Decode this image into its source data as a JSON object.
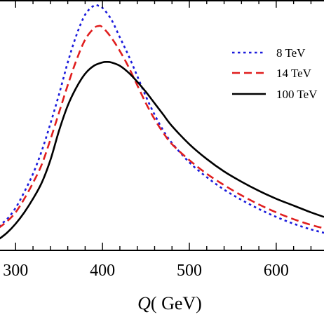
{
  "chart_data": {
    "type": "line",
    "xlabel_var": "Q",
    "xlabel_unit": "( GeV)",
    "xticks": [
      300,
      400,
      500,
      600
    ],
    "xlim": [
      282,
      655
    ],
    "ylim": [
      0,
      1
    ],
    "grid": false,
    "legend_position": "right",
    "series": [
      {
        "name": "8 TeV",
        "color": "#1a1adc",
        "dash": "dot",
        "x": [
          280,
          290,
          300,
          310,
          320,
          330,
          340,
          350,
          360,
          370,
          380,
          390,
          395,
          400,
          410,
          420,
          430,
          440,
          450,
          460,
          470,
          480,
          500,
          520,
          540,
          560,
          580,
          600,
          620,
          640,
          655
        ],
        "y": [
          0.03,
          0.06,
          0.11,
          0.18,
          0.26,
          0.36,
          0.48,
          0.61,
          0.75,
          0.87,
          0.96,
          1.0,
          1.0,
          0.99,
          0.94,
          0.86,
          0.78,
          0.69,
          0.6,
          0.52,
          0.45,
          0.395,
          0.31,
          0.245,
          0.19,
          0.145,
          0.105,
          0.07,
          0.04,
          0.015,
          0.0
        ]
      },
      {
        "name": "14 TeV",
        "color": "#e01e1e",
        "dash": "dash",
        "x": [
          280,
          290,
          300,
          310,
          320,
          330,
          340,
          350,
          360,
          370,
          380,
          390,
          395,
          400,
          410,
          420,
          430,
          440,
          450,
          460,
          470,
          480,
          500,
          520,
          540,
          560,
          580,
          600,
          620,
          640,
          655
        ],
        "y": [
          0.02,
          0.05,
          0.09,
          0.15,
          0.22,
          0.3,
          0.41,
          0.53,
          0.65,
          0.76,
          0.85,
          0.9,
          0.91,
          0.905,
          0.86,
          0.8,
          0.73,
          0.65,
          0.57,
          0.5,
          0.44,
          0.39,
          0.32,
          0.26,
          0.21,
          0.165,
          0.125,
          0.09,
          0.06,
          0.035,
          0.02
        ]
      },
      {
        "name": "100 TeV",
        "color": "#000000",
        "dash": "solid",
        "x": [
          280,
          290,
          300,
          310,
          320,
          330,
          340,
          350,
          360,
          370,
          380,
          390,
          400,
          405,
          410,
          420,
          430,
          440,
          450,
          460,
          470,
          480,
          500,
          520,
          540,
          560,
          580,
          600,
          620,
          640,
          655
        ],
        "y": [
          -0.03,
          0.0,
          0.04,
          0.09,
          0.15,
          0.22,
          0.32,
          0.45,
          0.56,
          0.64,
          0.7,
          0.735,
          0.75,
          0.752,
          0.75,
          0.735,
          0.705,
          0.665,
          0.62,
          0.57,
          0.52,
          0.47,
          0.39,
          0.325,
          0.27,
          0.225,
          0.185,
          0.15,
          0.12,
          0.09,
          0.07
        ]
      }
    ]
  }
}
